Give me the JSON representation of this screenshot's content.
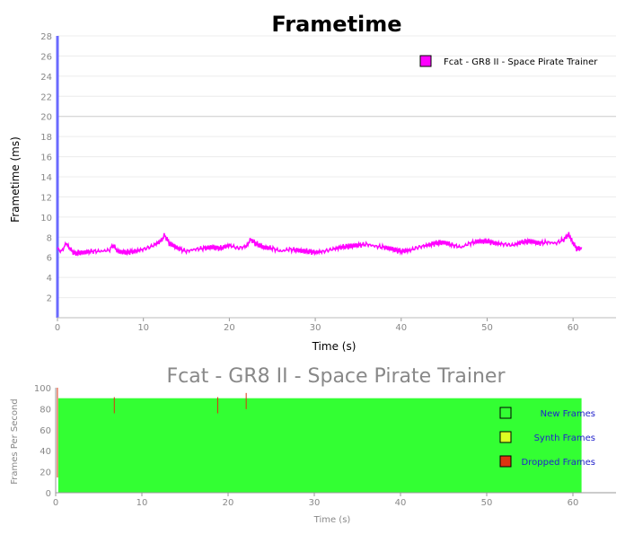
{
  "chart_data": [
    {
      "type": "line",
      "title": "Frametime",
      "xlabel": "Time (s)",
      "ylabel": "Frametime (ms)",
      "xlim": [
        0,
        65
      ],
      "ylim": [
        0,
        28
      ],
      "xticks": [
        0,
        10,
        20,
        30,
        40,
        50,
        60
      ],
      "yticks": [
        2,
        4,
        6,
        8,
        10,
        12,
        14,
        16,
        18,
        20,
        22,
        24,
        26,
        28
      ],
      "grid": true,
      "legend_position": "top-right",
      "series": [
        {
          "name": "Fcat - GR8 II - Space Pirate Trainer",
          "color": "#ff00ff",
          "x": [
            0,
            0.5,
            1,
            1.5,
            2,
            3,
            4,
            5,
            6,
            6.5,
            7,
            8,
            9,
            10,
            11,
            12,
            12.5,
            13,
            14,
            15,
            16,
            17,
            18,
            19,
            20,
            21,
            22,
            22.5,
            23,
            24,
            25,
            26,
            27,
            28,
            29,
            30,
            31,
            32,
            33,
            34,
            35,
            36,
            37,
            38,
            39,
            40,
            41,
            42,
            43,
            44,
            45,
            46,
            47,
            48,
            49,
            50,
            51,
            52,
            53,
            54,
            55,
            56,
            57,
            58,
            59,
            59.5,
            60,
            60.5,
            61
          ],
          "y": [
            6.8,
            6.6,
            7.4,
            6.8,
            6.4,
            6.5,
            6.6,
            6.6,
            6.7,
            7.2,
            6.6,
            6.5,
            6.6,
            6.8,
            7.1,
            7.6,
            8.2,
            7.4,
            6.9,
            6.6,
            6.8,
            6.9,
            7.0,
            6.9,
            7.2,
            6.9,
            7.1,
            7.8,
            7.4,
            7.0,
            6.9,
            6.6,
            6.8,
            6.7,
            6.6,
            6.5,
            6.6,
            6.8,
            7.0,
            7.1,
            7.2,
            7.3,
            7.1,
            7.0,
            6.8,
            6.6,
            6.7,
            7.0,
            7.2,
            7.4,
            7.5,
            7.2,
            7.0,
            7.4,
            7.6,
            7.6,
            7.4,
            7.3,
            7.2,
            7.5,
            7.6,
            7.4,
            7.5,
            7.4,
            7.8,
            8.3,
            7.4,
            6.8,
            7.0
          ]
        }
      ]
    },
    {
      "type": "area",
      "title": "Fcat - GR8 II - Space Pirate Trainer",
      "xlabel": "Time (s)",
      "ylabel": "Frames Per Second",
      "xlim": [
        0,
        65
      ],
      "ylim": [
        0,
        100
      ],
      "xticks": [
        0,
        10,
        20,
        30,
        40,
        50,
        60
      ],
      "yticks": [
        0,
        20,
        40,
        60,
        80,
        100
      ],
      "legend_position": "right",
      "series": [
        {
          "name": "New Frames",
          "color": "#33ff33",
          "x": [
            0.3,
            61
          ],
          "values": [
            90,
            90
          ]
        },
        {
          "name": "Synth Frames",
          "color": "#ddff22",
          "x": [],
          "values": []
        },
        {
          "name": "Dropped Frames",
          "color": "#dd3311",
          "x": [
            0.2,
            6.8,
            18.8,
            22.1
          ],
          "values": [
            100,
            91,
            91,
            95
          ]
        }
      ]
    }
  ]
}
